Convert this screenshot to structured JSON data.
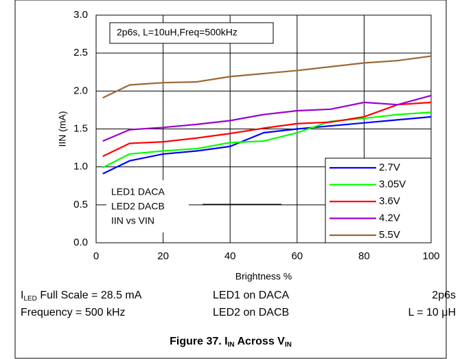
{
  "chart_data": {
    "type": "line",
    "x": [
      2,
      10,
      20,
      30,
      40,
      50,
      60,
      70,
      80,
      90,
      100
    ],
    "series": [
      {
        "name": "2.7V",
        "color": "#0000ff",
        "values": [
          0.91,
          1.08,
          1.17,
          1.21,
          1.27,
          1.45,
          1.5,
          1.54,
          1.58,
          1.62,
          1.66
        ]
      },
      {
        "name": "3.05V",
        "color": "#00ff00",
        "values": [
          0.99,
          1.17,
          1.21,
          1.24,
          1.32,
          1.34,
          1.45,
          1.6,
          1.64,
          1.69,
          1.72
        ]
      },
      {
        "name": "3.6V",
        "color": "#ff0000",
        "values": [
          1.14,
          1.31,
          1.33,
          1.38,
          1.44,
          1.51,
          1.57,
          1.59,
          1.66,
          1.82,
          1.85
        ]
      },
      {
        "name": "4.2V",
        "color": "#9900cc",
        "values": [
          1.34,
          1.49,
          1.52,
          1.56,
          1.61,
          1.69,
          1.74,
          1.76,
          1.85,
          1.82,
          1.94
        ]
      },
      {
        "name": "5.5V",
        "color": "#996633",
        "values": [
          1.91,
          2.08,
          2.11,
          2.12,
          2.19,
          2.23,
          2.27,
          2.32,
          2.37,
          2.4,
          2.46
        ]
      }
    ],
    "xlim": [
      0,
      100
    ],
    "xticks": [
      0,
      20,
      40,
      60,
      80,
      100
    ],
    "ylim": [
      0,
      3
    ],
    "yticks": [
      {
        "value": 0,
        "label": "0.0"
      },
      0.5,
      {
        "value": 1,
        "label": "1.0"
      },
      1.5,
      {
        "value": 2,
        "label": "2.0"
      },
      2.5,
      {
        "value": 3,
        "label": "3.0"
      }
    ],
    "grid": true,
    "legend": "bottom-right",
    "x_label": "Brightness %",
    "y_label": "IIN (mA)",
    "box_note": "2p6s, L=10uH,Freq=500kHz",
    "notes": [
      "LED1  DACA",
      "LED2  DACB",
      "IIN vs  VIN"
    ],
    "footer": [
      [
        [
          "I",
          "LED",
          " Full Scale = 28.5 mA"
        ],
        "LED1 on DACA",
        "2p6s"
      ],
      [
        [
          "Frequency = 500 kHz"
        ],
        "LED2 on DACB",
        "L = 10 μH"
      ]
    ],
    "caption": [
      "Figure 37. I",
      "IN",
      " Across V",
      "IN"
    ]
  }
}
